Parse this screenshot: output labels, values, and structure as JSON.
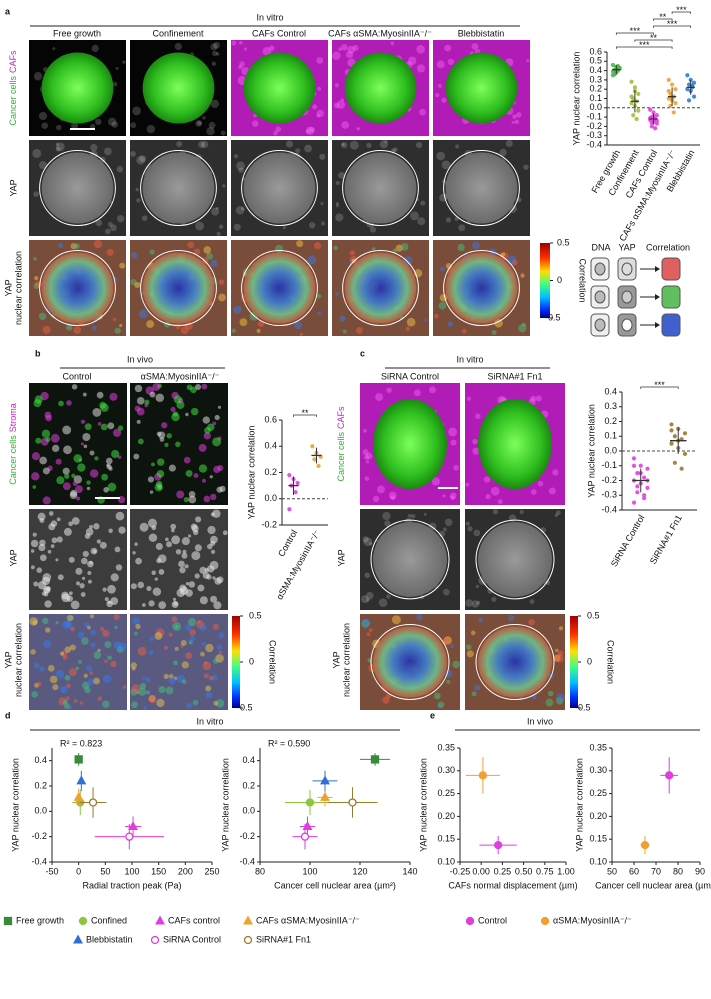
{
  "figure": {
    "a": {
      "letter": "a",
      "header": "In vitro",
      "columns": [
        "Free growth",
        "Confinement",
        "CAFs Control",
        "CAFs αSMA:MyosinIIA⁻/⁻",
        "Blebbistatin"
      ],
      "rows": [
        [
          "Cancer cells",
          "CAFs"
        ],
        [
          "YAP"
        ],
        [
          "YAP",
          "nuclear correlation"
        ]
      ],
      "colorbar": {
        "ticks": [
          0.5,
          0,
          -0.5
        ],
        "label": "Correlation"
      },
      "schematic": [
        "DNA",
        "YAP",
        "Correlation"
      ]
    },
    "b": {
      "letter": "b",
      "header": "In vivo",
      "columns": [
        "Control",
        "αSMA:MyosinIIA⁻/⁻"
      ],
      "rows": [
        [
          "Cancer cells",
          "Stroma"
        ],
        [
          "YAP"
        ],
        [
          "YAP",
          "nuclear correlation"
        ]
      ],
      "colorbar": {
        "ticks": [
          0.5,
          0,
          -0.5
        ],
        "label": "Correlation"
      }
    },
    "c": {
      "letter": "c",
      "header": "In vitro",
      "columns": [
        "SiRNA Control",
        "SiRNA#1 Fn1"
      ],
      "rows": [
        [
          "Cancer cells",
          "CAFs"
        ],
        [
          "YAP"
        ],
        [
          "YAP",
          "nuclear correlation"
        ]
      ],
      "colorbar": {
        "ticks": [
          0.5,
          0,
          -0.5
        ],
        "label": "Correlation"
      }
    },
    "d": {
      "letter": "d",
      "header": "In vitro"
    },
    "e": {
      "letter": "e",
      "header": "In vivo"
    }
  },
  "chart_data": [
    {
      "type": "strip",
      "ylabel": "YAP nuclear correlation",
      "categories": [
        "Free growth",
        "Confinement",
        "CAFs Control",
        "CAFs αSMA:MyosinIIA⁻/⁻",
        "Blebbistatin"
      ],
      "colors": [
        "#4cb84c",
        "#9fbf3a",
        "#e040e0",
        "#f0a030",
        "#2f7fd6"
      ],
      "values": [
        [
          0.46,
          0.44,
          0.43,
          0.41,
          0.4,
          0.39,
          0.38,
          0.42,
          0.36,
          0.45,
          0.35,
          0.41
        ],
        [
          0.28,
          0.22,
          0.15,
          0.1,
          0.07,
          0.05,
          0.02,
          -0.03,
          -0.08,
          -0.12,
          0.12,
          0.18
        ],
        [
          -0.02,
          -0.05,
          -0.08,
          -0.1,
          -0.12,
          -0.13,
          -0.15,
          -0.17,
          -0.2,
          -0.22,
          -0.11,
          -0.09,
          -0.14,
          -0.16
        ],
        [
          0.3,
          0.25,
          0.2,
          0.15,
          0.12,
          0.1,
          0.08,
          0.05,
          0.02,
          -0.05,
          0.18,
          0.11
        ],
        [
          0.35,
          0.3,
          0.27,
          0.25,
          0.22,
          0.2,
          0.18,
          0.12,
          0.08,
          0.24
        ]
      ],
      "means": [
        0.41,
        0.07,
        -0.12,
        0.12,
        0.22
      ],
      "sds": [
        0.05,
        0.12,
        0.06,
        0.1,
        0.08
      ],
      "ylim": [
        -0.4,
        0.6
      ],
      "yticks": [
        -0.4,
        -0.3,
        -0.2,
        -0.1,
        {
          "value": 0,
          "label": "0.0"
        },
        0.1,
        0.2,
        0.3,
        0.4,
        0.5,
        0.6
      ],
      "refline": 0,
      "brackets": [
        {
          "from": 0,
          "to": 3,
          "text": "***"
        },
        {
          "from": 1,
          "to": 3,
          "text": "**"
        },
        {
          "from": 0,
          "to": 2,
          "text": "***"
        },
        {
          "from": 2,
          "to": 4,
          "text": "***"
        },
        {
          "from": 2,
          "to": 3,
          "text": "**"
        },
        {
          "from": 3,
          "to": 4,
          "text": "***"
        }
      ]
    },
    {
      "type": "strip",
      "ylabel": "YAP nuclear correlation",
      "categories": [
        "Control",
        "αSMA:MyosinIIA⁻/⁻"
      ],
      "colors": [
        "#e040e0",
        "#f0a030"
      ],
      "values": [
        [
          0.18,
          0.15,
          0.12,
          0.1,
          0.05,
          -0.08
        ],
        [
          0.4,
          0.35,
          0.32,
          0.3,
          0.25
        ]
      ],
      "means": [
        0.1,
        0.33
      ],
      "sds": [
        0.07,
        0.06
      ],
      "ylim": [
        -0.2,
        0.6
      ],
      "yticks": [
        -0.2,
        {
          "value": 0,
          "label": "0.0"
        },
        0.2,
        0.4,
        0.6
      ],
      "refline": 0,
      "brackets": [
        {
          "from": 0,
          "to": 1,
          "text": "**"
        }
      ]
    },
    {
      "type": "strip",
      "ylabel": "YAP nuclear correlation",
      "categories": [
        "SiRNA Control",
        "SiRNA#1 Fn1"
      ],
      "colors": [
        "#e040e0",
        "#9b7a2a"
      ],
      "values": [
        [
          -0.05,
          -0.1,
          -0.12,
          -0.15,
          -0.18,
          -0.2,
          -0.22,
          -0.25,
          -0.28,
          -0.32,
          -0.35,
          -0.15,
          -0.2,
          -0.24,
          -0.3,
          -0.1
        ],
        [
          0.18,
          0.15,
          0.12,
          0.1,
          0.08,
          0.05,
          0.02,
          -0.02,
          -0.08,
          -0.12,
          0.14,
          0.07
        ]
      ],
      "means": [
        -0.2,
        0.07
      ],
      "sds": [
        0.08,
        0.09
      ],
      "ylim": [
        -0.4,
        0.4
      ],
      "yticks": [
        -0.4,
        -0.3,
        -0.2,
        -0.1,
        {
          "value": 0,
          "label": "0.0"
        },
        0.1,
        0.2,
        0.3,
        0.4
      ],
      "refline": 0,
      "brackets": [
        {
          "from": 0,
          "to": 1,
          "text": "***"
        }
      ]
    },
    {
      "type": "scatter",
      "xlabel": "Radial traction peak (Pa)",
      "ylabel": "YAP nuclear correlation",
      "annotation": "R² = 0.823",
      "xlim": [
        -50,
        250
      ],
      "xticks": [
        -50,
        0,
        50,
        100,
        150,
        200,
        250
      ],
      "ylim": [
        -0.4,
        0.5
      ],
      "yticks": [
        -0.4,
        -0.2,
        {
          "value": 0,
          "label": "0.0"
        },
        0.2,
        0.4
      ],
      "series": [
        {
          "name": "Free growth",
          "color": "#3b8a3b",
          "marker": "square",
          "filled": true,
          "x": [
            0
          ],
          "values": [
            0.41
          ],
          "xerr": [
            5
          ],
          "yerr": [
            0.05
          ]
        },
        {
          "name": "Confined",
          "color": "#8cc63f",
          "marker": "circle",
          "filled": true,
          "x": [
            3
          ],
          "values": [
            0.07
          ],
          "xerr": [
            15
          ],
          "yerr": [
            0.1
          ]
        },
        {
          "name": "CAFs control",
          "color": "#e03de0",
          "marker": "triangle",
          "filled": true,
          "x": [
            102
          ],
          "values": [
            -0.12
          ],
          "xerr": [
            15
          ],
          "yerr": [
            0.08
          ]
        },
        {
          "name": "CAFs αSMA:MyosinIIA⁻/⁻",
          "color": "#f0a030",
          "marker": "triangle",
          "filled": true,
          "x": [
            0
          ],
          "values": [
            0.11
          ],
          "xerr": [
            5
          ],
          "yerr": [
            0.07
          ]
        },
        {
          "name": "Blebbistatin",
          "color": "#2f6fd6",
          "marker": "triangle",
          "filled": true,
          "x": [
            5
          ],
          "values": [
            0.24
          ],
          "xerr": [
            5
          ],
          "yerr": [
            0.08
          ]
        },
        {
          "name": "SiRNA Control",
          "color": "#e03de0",
          "marker": "circle",
          "filled": false,
          "x": [
            95
          ],
          "values": [
            -0.2
          ],
          "xerr": [
            65
          ],
          "yerr": [
            0.1
          ]
        },
        {
          "name": "SiRNA#1 Fn1",
          "color": "#9b7a2a",
          "marker": "circle",
          "filled": false,
          "x": [
            27
          ],
          "values": [
            0.07
          ],
          "xerr": [
            25
          ],
          "yerr": [
            0.12
          ]
        }
      ]
    },
    {
      "type": "scatter",
      "xlabel": "Cancer cell nuclear area (µm²)",
      "ylabel": "YAP nuclear correlation",
      "annotation": "R² = 0.590",
      "xlim": [
        80,
        140
      ],
      "xticks": [
        80,
        100,
        120,
        140
      ],
      "ylim": [
        -0.4,
        0.5
      ],
      "yticks": [
        -0.4,
        -0.2,
        {
          "value": 0,
          "label": "0.0"
        },
        0.2,
        0.4
      ],
      "series": [
        {
          "color": "#3b8a3b",
          "marker": "square",
          "filled": true,
          "x": [
            126
          ],
          "values": [
            0.41
          ],
          "xerr": [
            6
          ],
          "yerr": [
            0.05
          ]
        },
        {
          "color": "#8cc63f",
          "marker": "circle",
          "filled": true,
          "x": [
            100
          ],
          "values": [
            0.07
          ],
          "xerr": [
            10
          ],
          "yerr": [
            0.1
          ]
        },
        {
          "color": "#e03de0",
          "marker": "triangle",
          "filled": true,
          "x": [
            99
          ],
          "values": [
            -0.12
          ],
          "xerr": [
            3
          ],
          "yerr": [
            0.08
          ]
        },
        {
          "color": "#f0a030",
          "marker": "triangle",
          "filled": true,
          "x": [
            106
          ],
          "values": [
            0.11
          ],
          "xerr": [
            3
          ],
          "yerr": [
            0.07
          ]
        },
        {
          "color": "#2f6fd6",
          "marker": "triangle",
          "filled": true,
          "x": [
            106
          ],
          "values": [
            0.24
          ],
          "xerr": [
            5
          ],
          "yerr": [
            0.08
          ]
        },
        {
          "color": "#e03de0",
          "marker": "circle",
          "filled": false,
          "x": [
            98
          ],
          "values": [
            -0.2
          ],
          "xerr": [
            5
          ],
          "yerr": [
            0.1
          ]
        },
        {
          "color": "#9b7a2a",
          "marker": "circle",
          "filled": false,
          "x": [
            117
          ],
          "values": [
            0.07
          ],
          "xerr": [
            10
          ],
          "yerr": [
            0.12
          ]
        }
      ]
    },
    {
      "type": "scatter",
      "xlabel": "CAFs normal displacement (µm)",
      "ylabel": "YAP nuclear correlation",
      "xlim": [
        -0.25,
        1.0
      ],
      "xticks": [
        -0.25,
        {
          "value": 0,
          "label": "0.00"
        },
        0.25,
        {
          "value": 0.5,
          "label": "0.50"
        },
        0.75,
        {
          "value": 1,
          "label": "1.00"
        }
      ],
      "ylim": [
        0.1,
        0.35
      ],
      "yticks": [
        {
          "value": 0.1,
          "label": "0.10"
        },
        0.15,
        {
          "value": 0.2,
          "label": "0.20"
        },
        0.25,
        {
          "value": 0.3,
          "label": "0.30"
        },
        0.35
      ],
      "series": [
        {
          "name": "Control",
          "color": "#e03de0",
          "marker": "circle",
          "filled": true,
          "x": [
            0.2
          ],
          "values": [
            0.137
          ],
          "xerr": [
            0.22
          ],
          "yerr": [
            0.02
          ]
        },
        {
          "name": "αSMA:MyosinIIA⁻/⁻",
          "color": "#f0a030",
          "marker": "circle",
          "filled": true,
          "x": [
            0.02
          ],
          "values": [
            0.29
          ],
          "xerr": [
            0.2
          ],
          "yerr": [
            0.04
          ]
        }
      ]
    },
    {
      "type": "scatter",
      "xlabel": "Cancer cell nuclear area (µm²)",
      "ylabel": "YAP nuclear correlation",
      "xlim": [
        50,
        90
      ],
      "xticks": [
        50,
        60,
        70,
        80,
        90
      ],
      "ylim": [
        0.1,
        0.35
      ],
      "yticks": [
        {
          "value": 0.1,
          "label": "0.10"
        },
        0.15,
        {
          "value": 0.2,
          "label": "0.20"
        },
        0.25,
        {
          "value": 0.3,
          "label": "0.30"
        },
        0.35
      ],
      "series": [
        {
          "color": "#e03de0",
          "marker": "circle",
          "filled": true,
          "x": [
            76
          ],
          "values": [
            0.29
          ],
          "xerr": [
            4
          ],
          "yerr": [
            0.04
          ]
        },
        {
          "color": "#f0a030",
          "marker": "circle",
          "filled": true,
          "x": [
            65
          ],
          "values": [
            0.137
          ],
          "xerr": [
            2
          ],
          "yerr": [
            0.02
          ]
        }
      ]
    }
  ]
}
